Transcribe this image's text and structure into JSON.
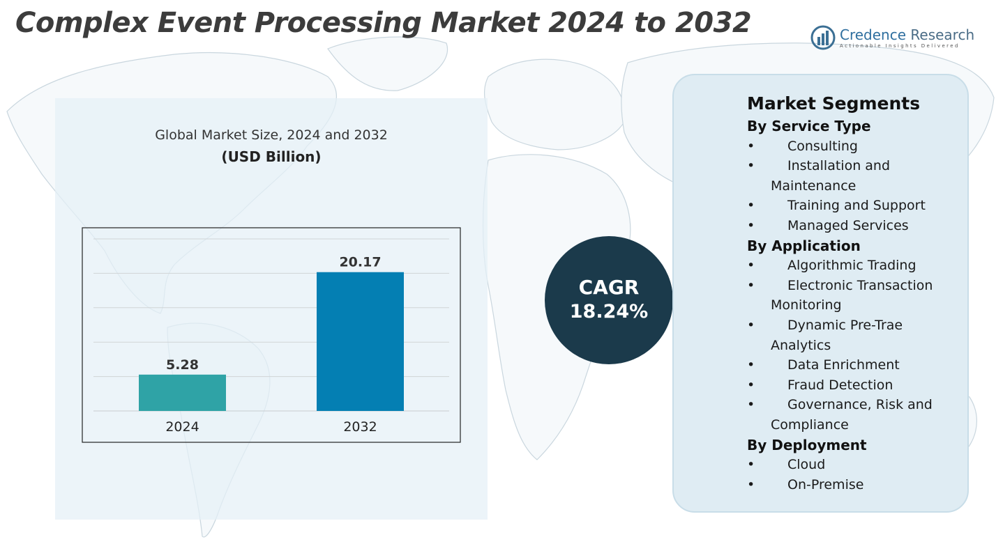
{
  "page": {
    "title": "Complex Event Processing Market 2024 to 2032"
  },
  "brand": {
    "name_first": "Credence",
    "name_second": " Research",
    "tagline": "Actionable Insights Delivered"
  },
  "colors": {
    "bar_2024": "#2fa3a6",
    "bar_2032": "#047fb3",
    "cagr_circle": "#1b3a4b",
    "panel_bg": "#dfecf3"
  },
  "chart_data": {
    "type": "bar",
    "title": "Global Market Size, 2024 and 2032",
    "unit_label": "(USD Billion)",
    "categories": [
      "2024",
      "2032"
    ],
    "values": [
      5.28,
      20.17
    ],
    "value_labels": [
      "5.28",
      "20.17"
    ],
    "ylim": [
      0,
      25
    ],
    "grid": true,
    "legend": "none"
  },
  "cagr": {
    "label": "CAGR",
    "value": "18.24%"
  },
  "segments": {
    "title": "Market Segments",
    "bullet": "•",
    "groups": [
      {
        "title": "By Service Type",
        "items": [
          "Consulting",
          "Installation and Maintenance",
          "Training and Support",
          "Managed Services"
        ]
      },
      {
        "title": "By Application",
        "items": [
          "Algorithmic Trading",
          "Electronic Transaction Monitoring",
          "Dynamic Pre-Trae Analytics",
          "Data Enrichment",
          "Fraud Detection",
          "Governance, Risk and Compliance"
        ]
      },
      {
        "title": "By Deployment",
        "items": [
          "Cloud",
          "On-Premise"
        ]
      }
    ]
  }
}
